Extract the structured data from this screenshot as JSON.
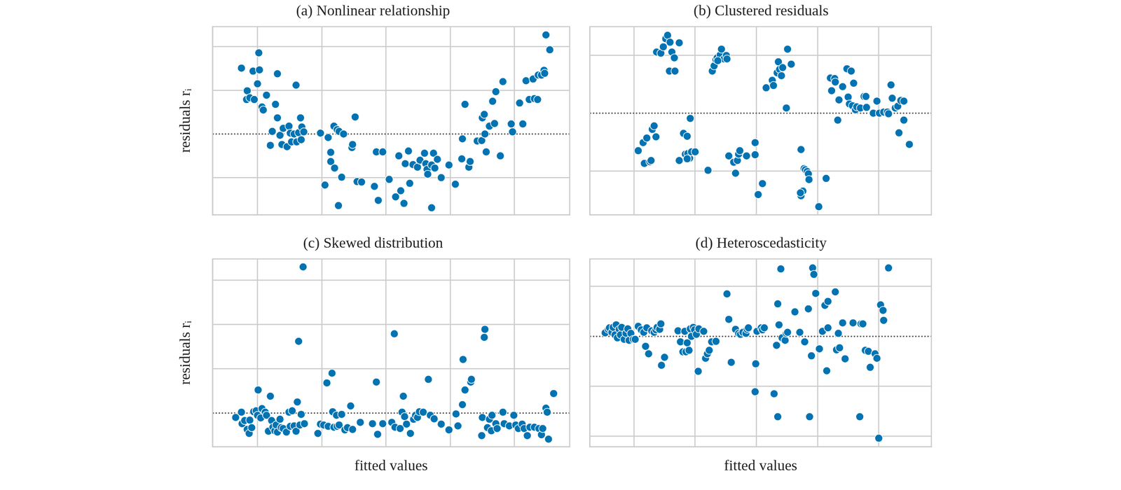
{
  "chart_data": [
    {
      "type": "scatter",
      "title": "(a) Nonlinear relationship",
      "y_label": "residuals rᵢ",
      "color": "#0173b2",
      "marker": "o",
      "grid": true,
      "tick_labels": false,
      "hline": 0,
      "xlim": [
        0.3,
        5.86
      ],
      "ylim": [
        -1.85,
        2.46
      ],
      "xticks": [
        1,
        2,
        3,
        4,
        5
      ],
      "yticks": [
        -1,
        0,
        1,
        2
      ],
      "x": [
        0.75,
        0.84,
        0.83,
        0.88,
        0.93,
        0.95,
        1.0,
        1.02,
        1.03,
        1.07,
        1.09,
        1.14,
        1.2,
        1.23,
        1.28,
        1.31,
        1.31,
        1.35,
        1.38,
        1.4,
        1.46,
        1.49,
        1.51,
        1.53,
        1.57,
        1.6,
        1.61,
        1.64,
        1.67,
        1.68,
        1.69,
        1.72,
        1.98,
        2.05,
        2.1,
        2.14,
        2.14,
        2.19,
        2.2,
        2.24,
        2.26,
        2.27,
        2.31,
        2.34,
        2.47,
        2.48,
        2.52,
        2.55,
        2.62,
        2.82,
        2.85,
        2.88,
        2.95,
        3.05,
        3.15,
        3.2,
        3.23,
        3.28,
        3.3,
        3.35,
        3.37,
        3.42,
        3.49,
        3.53,
        3.6,
        3.62,
        3.64,
        3.65,
        3.71,
        3.71,
        3.74,
        3.76,
        3.8,
        3.86,
        3.98,
        4.08,
        4.18,
        4.19,
        4.23,
        4.29,
        4.31,
        4.42,
        4.49,
        4.5,
        4.53,
        4.54,
        4.56,
        4.61,
        4.66,
        4.69,
        4.71,
        4.78,
        4.82,
        4.95,
        4.97,
        5.08,
        5.13,
        5.18,
        5.23,
        5.29,
        5.31,
        5.37,
        5.42,
        5.46,
        5.47,
        5.49,
        5.55,
        5.36
      ],
      "values": [
        1.51,
        0.99,
        0.79,
        0.83,
        1.44,
        0.79,
        1.15,
        1.86,
        1.47,
        0.62,
        0.55,
        0.89,
        -0.26,
        0.06,
        0.68,
        1.38,
        0.37,
        -0.03,
        -0.24,
        0.13,
        -0.29,
        0.18,
        0.02,
        -0.18,
        0.0,
        1.12,
        -0.18,
        0.03,
        0.37,
        -0.13,
        0.16,
        0.05,
        0.02,
        -1.17,
        -0.08,
        -0.42,
        -0.63,
        0.18,
        -0.78,
        0.1,
        -1.64,
        0.06,
        -0.99,
        0.0,
        -0.31,
        -0.24,
        0.39,
        -1.09,
        -1.1,
        -1.2,
        -0.41,
        -1.52,
        -0.41,
        -1.04,
        -1.44,
        -0.5,
        -1.3,
        -1.59,
        -0.68,
        -0.39,
        -1.13,
        -0.7,
        -0.76,
        -0.6,
        -0.44,
        -0.68,
        -0.81,
        -0.92,
        -1.69,
        -0.71,
        -0.44,
        -0.78,
        -0.58,
        -1.0,
        -0.71,
        -1.15,
        -0.57,
        -0.11,
        0.68,
        -0.76,
        -0.63,
        -0.16,
        -0.15,
        0.37,
        0.45,
        0.0,
        -0.41,
        0.18,
        0.75,
        0.24,
        0.97,
        -0.5,
        1.2,
        0.23,
        0.05,
        0.71,
        0.23,
        1.22,
        0.79,
        1.26,
        0.81,
        1.35,
        1.35,
        1.46,
        1.39,
        2.27,
        1.93,
        0.79
      ]
    },
    {
      "type": "scatter",
      "title": "(b) Clustered residuals",
      "color": "#0173b2",
      "marker": "o",
      "grid": true,
      "tick_labels": false,
      "hline": 0,
      "xlim": [
        0.28,
        5.86
      ],
      "ylim": [
        -1.76,
        1.5
      ],
      "xticks": [
        1,
        2,
        3,
        4,
        5
      ],
      "yticks": [
        -1,
        0,
        1
      ],
      "x": [
        1.37,
        1.44,
        1.48,
        1.52,
        1.55,
        1.59,
        1.62,
        1.66,
        1.58,
        1.67,
        1.74,
        1.07,
        1.15,
        1.17,
        1.21,
        1.26,
        1.28,
        1.3,
        1.33,
        1.36,
        1.81,
        1.87,
        1.91,
        1.92,
        1.74,
        1.84,
        1.88,
        1.94,
        2.0,
        1.87,
        2.21,
        2.28,
        2.31,
        2.34,
        2.36,
        2.41,
        2.43,
        2.47,
        2.51,
        2.52,
        2.37,
        2.55,
        2.63,
        2.69,
        2.71,
        2.73,
        2.66,
        2.84,
        2.98,
        2.98,
        3.1,
        3.03,
        3.16,
        3.26,
        3.28,
        3.34,
        3.36,
        3.38,
        3.41,
        3.43,
        3.49,
        3.51,
        3.57,
        3.73,
        3.73,
        3.76,
        3.78,
        3.8,
        3.83,
        3.85,
        3.86,
        3.72,
        4.02,
        4.14,
        4.21,
        4.23,
        4.28,
        4.29,
        4.33,
        4.35,
        4.41,
        4.48,
        4.5,
        4.52,
        4.55,
        4.57,
        4.59,
        4.62,
        4.64,
        4.7,
        4.76,
        4.8,
        4.91,
        4.97,
        5.01,
        5.08,
        5.14,
        5.2,
        5.22,
        5.27,
        5.31,
        5.36,
        5.41,
        5.33,
        5.41,
        5.5,
        4.79,
        5.16
      ],
      "values": [
        1.06,
        1.04,
        1.15,
        1.29,
        1.35,
        1.23,
        1.06,
        0.96,
        0.73,
        0.73,
        1.22,
        -0.65,
        -0.51,
        -0.87,
        -0.43,
        -0.84,
        -0.82,
        -0.28,
        -0.22,
        -0.41,
        -0.35,
        -0.4,
        -0.78,
        -0.09,
        -0.82,
        -0.71,
        -0.7,
        -0.67,
        -0.67,
        -0.79,
        -0.99,
        0.73,
        0.82,
        0.93,
        0.96,
        1.01,
        1.11,
        0.94,
        1.0,
        0.94,
        0.91,
        -0.74,
        -0.85,
        -0.82,
        -0.71,
        -0.65,
        -1.04,
        -0.74,
        -0.72,
        -0.51,
        -1.22,
        -1.41,
        0.44,
        0.57,
        0.48,
        0.7,
        0.89,
        0.76,
        0.65,
        0.79,
        0.09,
        1.11,
        0.85,
        -0.63,
        -1.43,
        -1.35,
        -0.96,
        -0.98,
        -1.01,
        -1.05,
        -1.15,
        -1.38,
        -1.62,
        -1.13,
        0.61,
        0.39,
        0.6,
        0.54,
        -0.12,
        0.23,
        0.46,
        0.77,
        0.28,
        0.16,
        0.73,
        0.13,
        0.52,
        0.06,
        0.11,
        0.09,
        0.29,
        0.1,
        0.0,
        0.21,
        0.0,
        0.02,
        0.02,
        0.49,
        0.26,
        0.09,
        0.12,
        0.22,
        0.21,
        -0.34,
        -0.12,
        -0.54,
        0.29,
        -0.01
      ]
    },
    {
      "type": "scatter",
      "title": "(c) Skewed distribution",
      "y_label": "residuals rᵢ",
      "x_label": "fitted values",
      "color": "#0173b2",
      "marker": "o",
      "grid": true,
      "tick_labels": false,
      "hline": 0,
      "xlim": [
        0.3,
        5.86
      ],
      "ylim": [
        -0.76,
        3.48
      ],
      "xticks": [
        1,
        2,
        3,
        4,
        5
      ],
      "yticks": [
        0,
        1,
        2,
        3
      ],
      "x": [
        0.66,
        0.75,
        0.76,
        0.8,
        0.84,
        0.87,
        0.88,
        0.91,
        0.94,
        0.98,
        1.0,
        1.01,
        1.05,
        1.07,
        1.12,
        1.14,
        1.17,
        1.2,
        1.22,
        1.24,
        1.27,
        1.29,
        1.31,
        1.35,
        1.37,
        1.4,
        1.45,
        1.49,
        1.51,
        1.54,
        1.57,
        1.6,
        1.62,
        1.64,
        1.66,
        1.68,
        1.71,
        1.73,
        1.94,
        1.98,
        2.03,
        2.08,
        2.1,
        2.16,
        2.17,
        2.19,
        2.23,
        2.24,
        2.27,
        2.31,
        2.36,
        2.4,
        2.45,
        2.48,
        2.6,
        2.79,
        2.85,
        2.87,
        2.95,
        3.09,
        3.13,
        3.14,
        3.22,
        3.25,
        3.27,
        3.29,
        3.32,
        3.38,
        3.43,
        3.46,
        3.49,
        3.52,
        3.58,
        3.66,
        3.69,
        3.75,
        3.86,
        3.98,
        4.09,
        4.12,
        4.19,
        4.2,
        4.23,
        4.32,
        4.33,
        4.49,
        4.5,
        4.53,
        4.54,
        4.58,
        4.61,
        4.64,
        4.65,
        4.71,
        4.73,
        4.82,
        4.84,
        4.92,
        4.99,
        5.02,
        5.06,
        5.12,
        5.15,
        5.2,
        5.24,
        5.31,
        5.38,
        5.42,
        5.44,
        5.49,
        5.51,
        5.53,
        5.61
      ],
      "values": [
        -0.1,
        0.02,
        -0.24,
        -0.17,
        -0.37,
        -0.46,
        -0.16,
        -0.33,
        0.03,
        0.05,
        -0.05,
        0.52,
        -0.11,
        0.1,
        0.02,
        -0.05,
        -0.41,
        0.38,
        -0.17,
        -0.32,
        -0.4,
        -0.27,
        -0.43,
        -0.14,
        -0.33,
        -0.35,
        -0.43,
        0.02,
        -0.3,
        0.05,
        -0.29,
        -0.41,
        0.25,
        1.62,
        -0.27,
        -0.03,
        3.3,
        -0.24,
        -0.46,
        -0.25,
        -0.27,
        0.68,
        -0.3,
        0.9,
        0.03,
        -0.32,
        -0.05,
        -0.3,
        -0.27,
        -0.03,
        -0.38,
        -0.33,
        0.16,
        -0.37,
        -0.21,
        -0.24,
        0.7,
        -0.48,
        -0.24,
        -0.21,
        1.79,
        -0.32,
        -0.35,
        0.02,
        0.38,
        -0.08,
        -0.25,
        -0.46,
        -0.14,
        -0.05,
        -0.1,
        0.03,
        0.02,
        0.76,
        -0.05,
        -0.13,
        -0.25,
        -0.38,
        -0.02,
        -0.29,
        0.19,
        1.21,
        0.52,
        0.7,
        0.76,
        -0.51,
        -0.1,
        1.71,
        1.89,
        -0.33,
        -0.14,
        -0.4,
        -0.05,
        -0.24,
        -0.35,
        0.02,
        -0.24,
        -0.29,
        -0.05,
        -0.27,
        -0.35,
        -0.25,
        -0.35,
        -0.51,
        -0.32,
        -0.32,
        -0.35,
        -0.49,
        -0.35,
        0.11,
        0.02,
        -0.59,
        0.44
      ]
    },
    {
      "type": "scatter",
      "title": "(d) Heteroscedasticity",
      "x_label": "fitted values",
      "color": "#0173b2",
      "marker": "o",
      "grid": true,
      "tick_labels": false,
      "hline": 0,
      "xlim": [
        0.28,
        5.86
      ],
      "ylim": [
        -2.21,
        1.55
      ],
      "xticks": [
        1,
        2,
        3,
        4,
        5
      ],
      "yticks": [
        -2,
        -1,
        0,
        1
      ],
      "x": [
        0.53,
        0.58,
        0.6,
        0.64,
        0.66,
        0.69,
        0.71,
        0.73,
        0.76,
        0.78,
        0.8,
        0.84,
        0.87,
        0.9,
        0.92,
        0.95,
        0.99,
        1.02,
        1.07,
        1.12,
        1.16,
        1.19,
        1.21,
        1.24,
        1.29,
        1.33,
        1.36,
        1.38,
        1.42,
        1.44,
        1.45,
        1.5,
        1.72,
        1.76,
        1.8,
        1.83,
        1.85,
        1.87,
        1.9,
        1.92,
        1.94,
        1.97,
        1.99,
        2.02,
        2.05,
        2.06,
        2.14,
        2.17,
        2.2,
        2.23,
        2.27,
        2.34,
        2.52,
        2.55,
        2.59,
        2.66,
        2.71,
        2.74,
        2.78,
        2.83,
        2.85,
        2.87,
        2.98,
        2.99,
        3.01,
        3.08,
        3.1,
        3.13,
        3.29,
        3.33,
        3.35,
        3.35,
        3.37,
        3.4,
        3.42,
        3.47,
        3.49,
        3.51,
        3.63,
        3.79,
        3.85,
        3.87,
        3.9,
        3.92,
        3.94,
        3.97,
        4.08,
        4.12,
        4.15,
        4.17,
        4.17,
        4.29,
        4.31,
        4.34,
        4.36,
        4.41,
        4.45,
        4.58,
        4.69,
        4.71,
        4.74,
        4.78,
        4.83,
        4.86,
        4.94,
        4.97,
        5.0,
        5.03,
        5.07,
        5.08,
        5.16,
        3.71,
        4.03
      ],
      "values": [
        0.07,
        0.14,
        0.17,
        0.08,
        0.18,
        0.03,
        0.23,
        -0.03,
        0.14,
        0.03,
        0.18,
        -0.06,
        0.06,
        0.15,
        -0.08,
        0.06,
        -0.06,
        -0.06,
        0.2,
        0.13,
        0.08,
        -0.2,
        0.17,
        -0.35,
        0.11,
        0.08,
        0.13,
        0.18,
        0.14,
        0.25,
        -0.58,
        -0.42,
        0.11,
        -0.11,
        -0.31,
        0.1,
        -0.31,
        -0.13,
        -0.28,
        0.15,
        0.0,
        0.18,
        0.13,
        0.04,
        -0.7,
        0.15,
        0.1,
        -0.44,
        -0.35,
        -0.28,
        -0.11,
        -0.1,
        0.85,
        0.34,
        -0.52,
        0.14,
        0.06,
        0.04,
        0.08,
        0.06,
        0.14,
        0.17,
        -1.11,
        -0.55,
        0.1,
        0.17,
        0.13,
        0.17,
        -1.15,
        -0.18,
        0.65,
        -1.61,
        0.23,
        1.35,
        -0.03,
        -0.08,
        0.06,
        0.08,
        0.49,
        -0.11,
        0.55,
        -1.61,
        -0.39,
        1.37,
        1.24,
        0.86,
        0.1,
        0.62,
        -0.69,
        0.17,
        0.7,
        0.89,
        -0.27,
        0.06,
        -0.23,
        0.27,
        -0.45,
        0.27,
        -1.61,
        0.25,
        0.25,
        -0.28,
        -0.3,
        -0.62,
        -0.35,
        -0.44,
        -2.04,
        0.63,
        0.52,
        0.32,
        1.37,
        0.08,
        -0.25
      ]
    }
  ]
}
